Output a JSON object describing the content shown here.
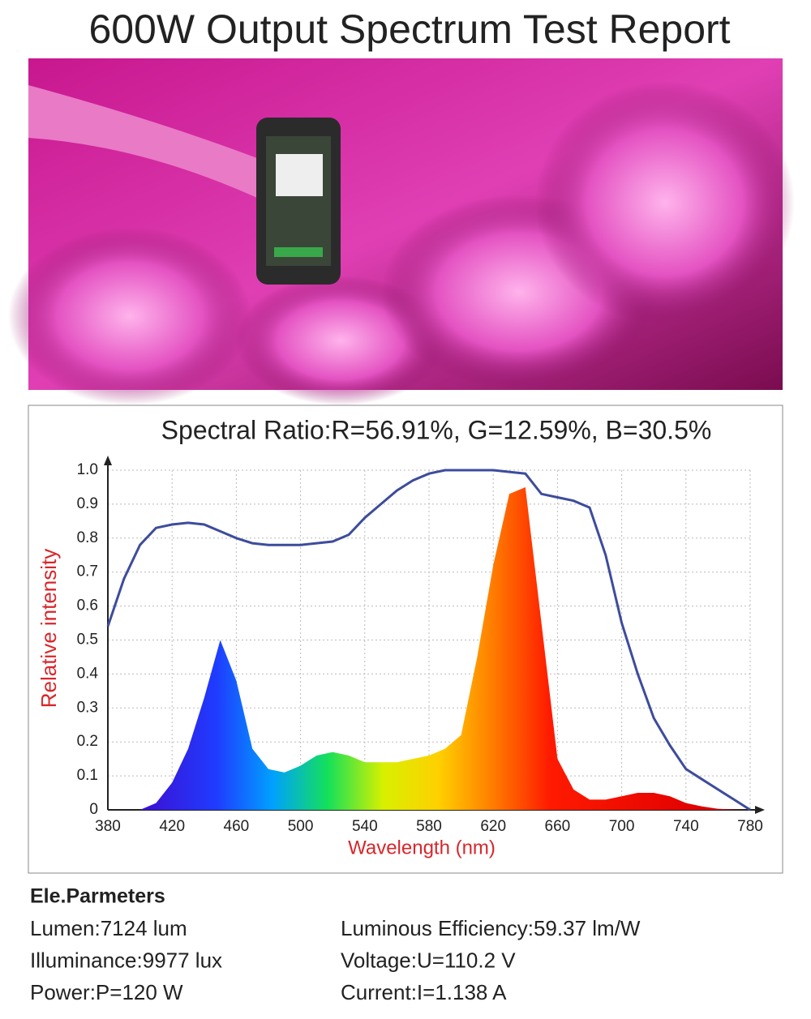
{
  "header": {
    "title": "600W Output Spectrum Test Report"
  },
  "chart_data": {
    "type": "area",
    "title": "Spectral Ratio:R=56.91%, G=12.59%, B=30.5%",
    "x_label": "Wavelength (nm)",
    "y_label": "Relative intensity",
    "x": [
      380,
      390,
      400,
      410,
      420,
      430,
      440,
      450,
      460,
      470,
      480,
      490,
      500,
      510,
      520,
      530,
      540,
      550,
      560,
      570,
      580,
      590,
      600,
      610,
      620,
      630,
      640,
      650,
      660,
      670,
      680,
      690,
      700,
      710,
      720,
      730,
      740,
      750,
      760,
      770,
      780
    ],
    "series": [
      {
        "color": "spectrum",
        "values": [
          null,
          null,
          0,
          0.02,
          0.08,
          0.18,
          0.33,
          0.5,
          0.38,
          0.18,
          0.12,
          0.11,
          0.13,
          0.16,
          0.17,
          0.16,
          0.14,
          0.14,
          0.14,
          0.15,
          0.16,
          0.18,
          0.22,
          0.45,
          0.72,
          0.93,
          0.95,
          0.55,
          0.15,
          0.06,
          0.03,
          0.03,
          0.04,
          0.05,
          0.05,
          0.04,
          0.02,
          0.01,
          0.003,
          0.001,
          0
        ]
      },
      {
        "color": "#3d4c9c",
        "values": [
          0.54,
          0.68,
          0.78,
          0.83,
          0.84,
          0.845,
          0.84,
          0.82,
          0.8,
          0.785,
          0.78,
          0.78,
          0.78,
          0.785,
          0.79,
          0.81,
          0.86,
          0.9,
          0.94,
          0.97,
          0.99,
          1,
          1,
          1,
          1,
          0.995,
          0.99,
          0.93,
          0.92,
          0.91,
          0.89,
          0.75,
          0.55,
          0.4,
          0.27,
          0.19,
          0.12,
          0.09,
          0.06,
          0.03,
          0
        ]
      }
    ],
    "xlim": [
      380,
      780
    ],
    "xticks": [
      380,
      420,
      460,
      500,
      540,
      580,
      620,
      660,
      700,
      740,
      780
    ],
    "ylim": [
      0,
      1
    ],
    "yticks": [
      0,
      0.1,
      0.2,
      0.3,
      0.4,
      0.5,
      0.6,
      0.7,
      0.8,
      0.9,
      {
        "value": 1,
        "label": "1.0"
      }
    ],
    "grid": true
  },
  "parameters": {
    "title": "Ele.Parmeters",
    "items": [
      [
        "Lumen:7124 lum",
        "Luminous Efficiency:59.37 lm/W"
      ],
      [
        "Illuminance:9977 lux",
        "Voltage:U=110.2 V"
      ],
      [
        "Power:P=120 W",
        "Current:I=1.138 A"
      ]
    ]
  }
}
